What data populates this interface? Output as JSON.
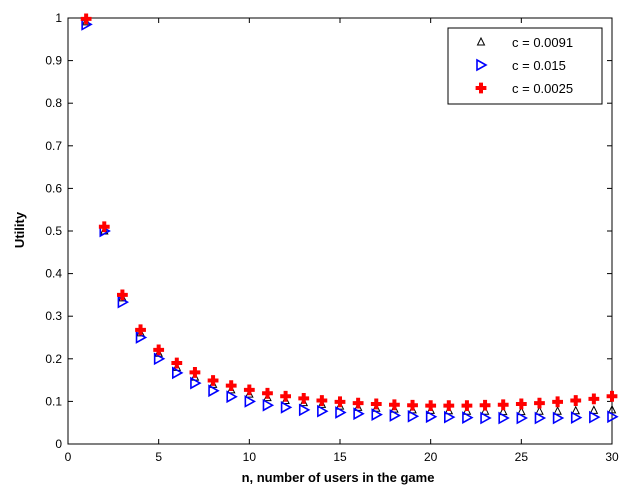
{
  "chart_data": {
    "type": "scatter",
    "title": "",
    "xlabel": "n, number of users in the game",
    "ylabel": "Utility",
    "xlim": [
      0,
      30
    ],
    "ylim": [
      0,
      1
    ],
    "xticks": [
      "0",
      "5",
      "10",
      "15",
      "20",
      "25",
      "30"
    ],
    "yticks": [
      "0",
      "0.1",
      "0.2",
      "0.3",
      "0.4",
      "0.5",
      "0.6",
      "0.7",
      "0.8",
      "0.9",
      "1"
    ],
    "grid": false,
    "legend_position": "top-right",
    "x": [
      1,
      2,
      3,
      4,
      5,
      6,
      7,
      8,
      9,
      10,
      11,
      12,
      13,
      14,
      15,
      16,
      17,
      18,
      19,
      20,
      21,
      22,
      23,
      24,
      25,
      26,
      27,
      28,
      29,
      30
    ],
    "series": [
      {
        "name": "c = 0.0091",
        "marker": "triangle-up",
        "color": "#000000",
        "values": [
          0.991,
          0.5,
          0.343,
          0.261,
          0.213,
          0.18,
          0.157,
          0.14,
          0.127,
          0.117,
          0.109,
          0.102,
          0.097,
          0.093,
          0.089,
          0.086,
          0.084,
          0.082,
          0.08,
          0.079,
          0.078,
          0.077,
          0.077,
          0.076,
          0.076,
          0.077,
          0.077,
          0.078,
          0.079,
          0.08
        ]
      },
      {
        "name": "c = 0.015",
        "marker": "triangle-right",
        "color": "#0000ff",
        "values": [
          0.985,
          0.5,
          0.333,
          0.25,
          0.2,
          0.167,
          0.143,
          0.125,
          0.111,
          0.1,
          0.091,
          0.086,
          0.08,
          0.077,
          0.074,
          0.071,
          0.069,
          0.067,
          0.065,
          0.064,
          0.063,
          0.062,
          0.061,
          0.061,
          0.061,
          0.061,
          0.061,
          0.062,
          0.063,
          0.064
        ]
      },
      {
        "name": "c = 0.0025",
        "marker": "plus-filled",
        "color": "#ff0000",
        "values": [
          0.998,
          0.51,
          0.35,
          0.268,
          0.221,
          0.19,
          0.168,
          0.149,
          0.137,
          0.127,
          0.119,
          0.112,
          0.107,
          0.102,
          0.099,
          0.096,
          0.094,
          0.092,
          0.091,
          0.09,
          0.09,
          0.09,
          0.091,
          0.092,
          0.094,
          0.096,
          0.099,
          0.102,
          0.106,
          0.112
        ]
      }
    ]
  }
}
